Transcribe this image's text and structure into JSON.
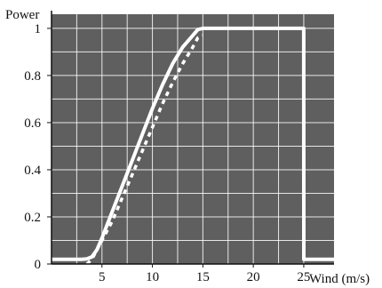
{
  "chart_data": {
    "type": "line",
    "xlabel": "Wind (m/s)",
    "ylabel": "Power",
    "xlim": [
      0,
      28
    ],
    "ylim": [
      0,
      1.06
    ],
    "x_ticks": [
      5,
      10,
      15,
      20,
      25
    ],
    "y_ticks": [
      0,
      0.2,
      0.4,
      0.6,
      0.8,
      1
    ],
    "y_tick_labels": [
      "0",
      "0.2",
      "0.4",
      "0.6",
      "0.8",
      "1"
    ],
    "grid": true,
    "x_grid_lines": [
      0,
      2.5,
      5,
      7.5,
      10,
      12.5,
      15,
      17.5,
      20,
      22.5,
      25
    ],
    "y_grid_lines": [
      0,
      0.1,
      0.2,
      0.3,
      0.4,
      0.5,
      0.6,
      0.7,
      0.8,
      0.9,
      1.0
    ],
    "series": [
      {
        "style": "solid",
        "x": [
          0,
          3,
          3.5,
          4,
          4.5,
          5,
          6,
          7,
          8,
          9,
          10,
          11,
          12,
          13,
          14,
          14.5,
          15,
          20,
          25,
          25.01,
          28
        ],
        "y": [
          0.02,
          0.02,
          0.022,
          0.03,
          0.06,
          0.11,
          0.22,
          0.33,
          0.44,
          0.55,
          0.66,
          0.76,
          0.85,
          0.92,
          0.97,
          0.995,
          1.0,
          1.0,
          1.0,
          0.02,
          0.02
        ]
      },
      {
        "style": "dashed",
        "x": [
          3.5,
          4,
          5,
          6,
          7,
          8,
          9,
          10,
          11,
          12,
          13,
          14,
          14.5,
          15
        ],
        "y": [
          0.0,
          0.02,
          0.1,
          0.18,
          0.28,
          0.38,
          0.48,
          0.58,
          0.68,
          0.77,
          0.85,
          0.92,
          0.96,
          0.97
        ]
      }
    ],
    "colors": {
      "plot_background": "#5f5f5f",
      "grid": "#ffffff",
      "series_line": "#ffffff",
      "text": "#111111"
    }
  }
}
